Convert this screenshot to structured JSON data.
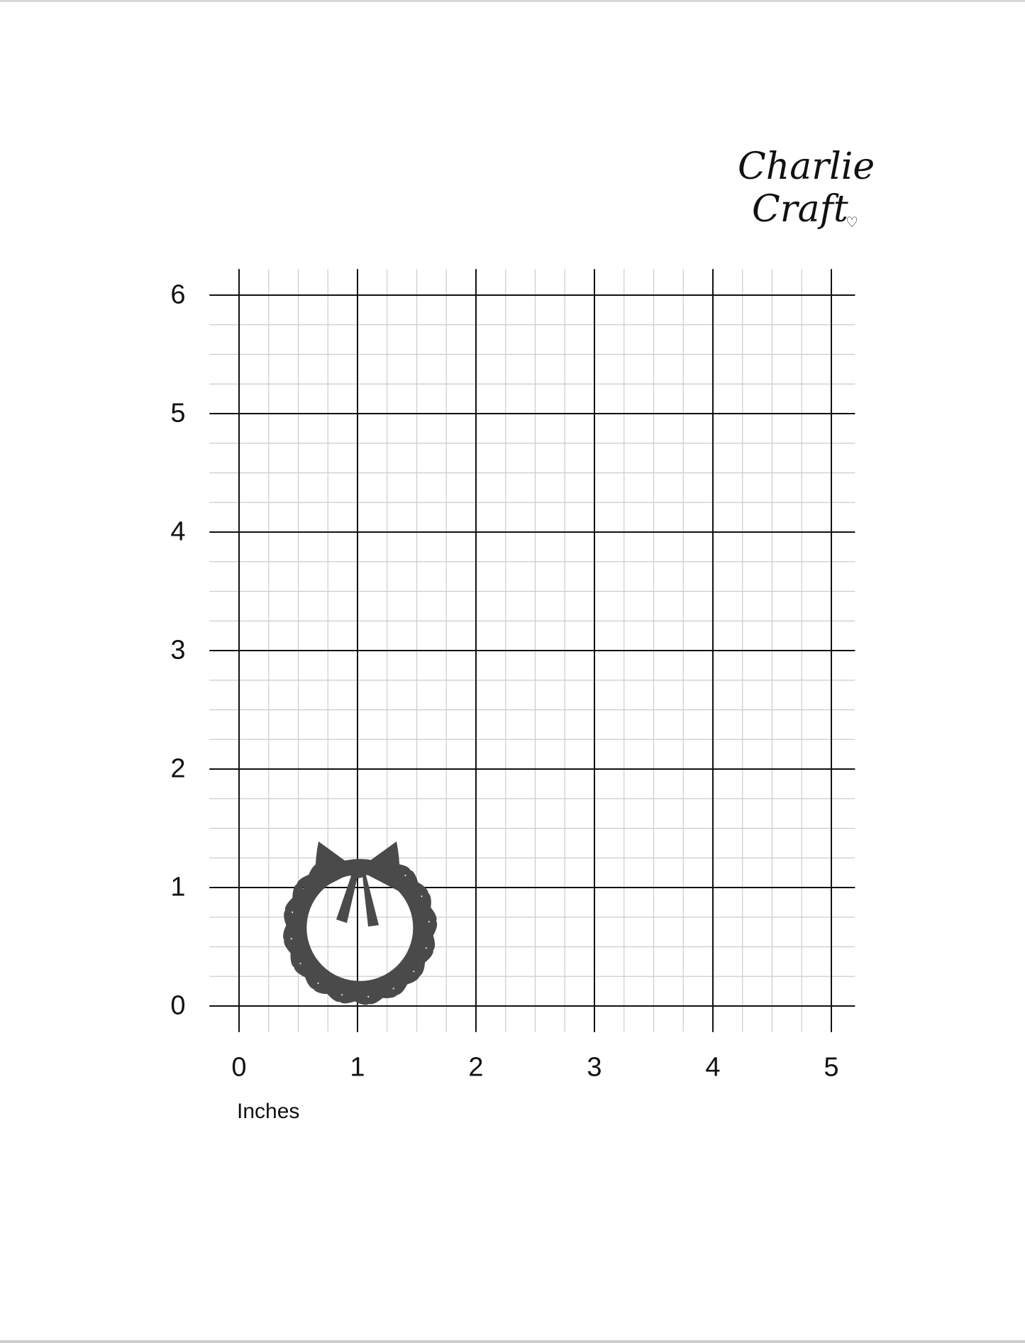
{
  "logo": {
    "line1": "Charlie",
    "line2": "Craft",
    "heart_icon": "heart-outline-icon"
  },
  "grid": {
    "units_label": "Inches",
    "x_ticks": [
      "0",
      "1",
      "2",
      "3",
      "4",
      "5"
    ],
    "y_ticks": [
      "0",
      "1",
      "2",
      "3",
      "4",
      "5",
      "6"
    ],
    "x_range": [
      0,
      5
    ],
    "y_range": [
      0,
      6
    ],
    "minor_step": 0.25,
    "major_color": "#111111",
    "minor_color": "#cccccc"
  },
  "item": {
    "name": "wreath-with-bow-die-cut",
    "color": "#4a4a4a",
    "width_in": 1.35,
    "height_in": 1.4
  }
}
